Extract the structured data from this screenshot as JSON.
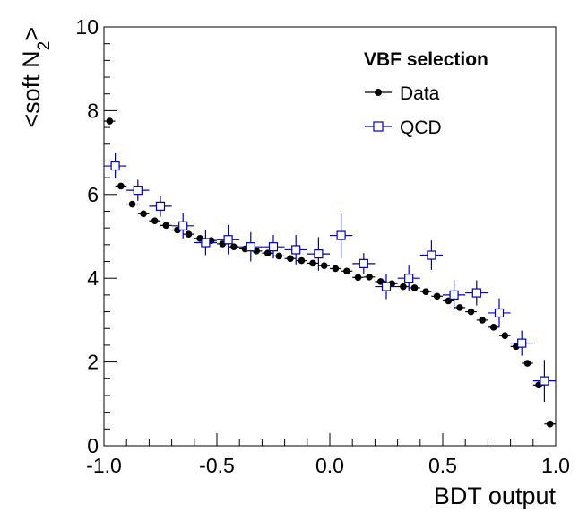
{
  "chart_data": {
    "type": "scatter",
    "title": "",
    "xlabel": "BDT output",
    "ylabel_main": "<soft N",
    "ylabel_sub": "2",
    "ylabel_end": ">",
    "xlim": [
      -1.0,
      1.0
    ],
    "ylim": [
      0,
      10
    ],
    "x_ticks": [
      -1.0,
      -0.5,
      0.0,
      0.5,
      1.0
    ],
    "x_tick_labels": [
      "-1.0",
      "-0.5",
      "0.0",
      "0.5",
      "1.0"
    ],
    "y_ticks": [
      0,
      2,
      4,
      6,
      8,
      10
    ],
    "y_tick_labels": [
      "0",
      "2",
      "4",
      "6",
      "8",
      "10"
    ],
    "grid": false,
    "legend": {
      "title": "VBF selection",
      "placement": "top-right",
      "entries": [
        "Data",
        "QCD"
      ]
    },
    "series": [
      {
        "name": "Data",
        "marker": "filled-circle",
        "color": "#000000",
        "x_halfwidth": 0.025,
        "x": [
          -0.975,
          -0.925,
          -0.875,
          -0.825,
          -0.775,
          -0.725,
          -0.675,
          -0.625,
          -0.575,
          -0.525,
          -0.475,
          -0.425,
          -0.375,
          -0.325,
          -0.275,
          -0.225,
          -0.175,
          -0.125,
          -0.075,
          -0.025,
          0.025,
          0.075,
          0.125,
          0.175,
          0.225,
          0.275,
          0.325,
          0.375,
          0.425,
          0.475,
          0.525,
          0.575,
          0.625,
          0.675,
          0.725,
          0.775,
          0.825,
          0.875,
          0.925,
          0.975
        ],
        "y": [
          7.75,
          6.2,
          5.77,
          5.54,
          5.37,
          5.26,
          5.15,
          5.05,
          4.95,
          4.9,
          4.82,
          4.75,
          4.7,
          4.65,
          4.6,
          4.53,
          4.47,
          4.42,
          4.36,
          4.3,
          4.23,
          4.17,
          4.02,
          4.03,
          3.92,
          3.87,
          3.8,
          3.77,
          3.68,
          3.57,
          3.46,
          3.3,
          3.2,
          3.0,
          2.83,
          2.63,
          2.37,
          1.97,
          1.45,
          0.52
        ],
        "y_err": [
          0.06,
          0.05,
          0.05,
          0.05,
          0.05,
          0.05,
          0.05,
          0.05,
          0.05,
          0.05,
          0.05,
          0.05,
          0.05,
          0.05,
          0.05,
          0.05,
          0.05,
          0.05,
          0.05,
          0.05,
          0.05,
          0.05,
          0.05,
          0.05,
          0.05,
          0.05,
          0.05,
          0.05,
          0.05,
          0.05,
          0.05,
          0.05,
          0.05,
          0.05,
          0.05,
          0.05,
          0.06,
          0.06,
          0.06,
          0.08
        ]
      },
      {
        "name": "QCD",
        "marker": "open-square",
        "color": "#0000aa",
        "x_halfwidth": 0.05,
        "x": [
          -0.95,
          -0.85,
          -0.75,
          -0.65,
          -0.55,
          -0.45,
          -0.35,
          -0.25,
          -0.15,
          -0.05,
          0.05,
          0.15,
          0.25,
          0.35,
          0.45,
          0.55,
          0.65,
          0.75,
          0.85,
          0.95
        ],
        "y": [
          6.68,
          6.1,
          5.72,
          5.25,
          4.85,
          4.92,
          4.75,
          4.75,
          4.68,
          4.58,
          5.02,
          4.35,
          3.8,
          4.0,
          4.55,
          3.6,
          3.65,
          3.17,
          2.45,
          1.55
        ],
        "y_err": [
          0.3,
          0.25,
          0.25,
          0.3,
          0.3,
          0.35,
          0.35,
          0.28,
          0.35,
          0.4,
          0.55,
          0.25,
          0.3,
          0.3,
          0.35,
          0.35,
          0.3,
          0.35,
          0.3,
          0.5
        ]
      }
    ]
  }
}
